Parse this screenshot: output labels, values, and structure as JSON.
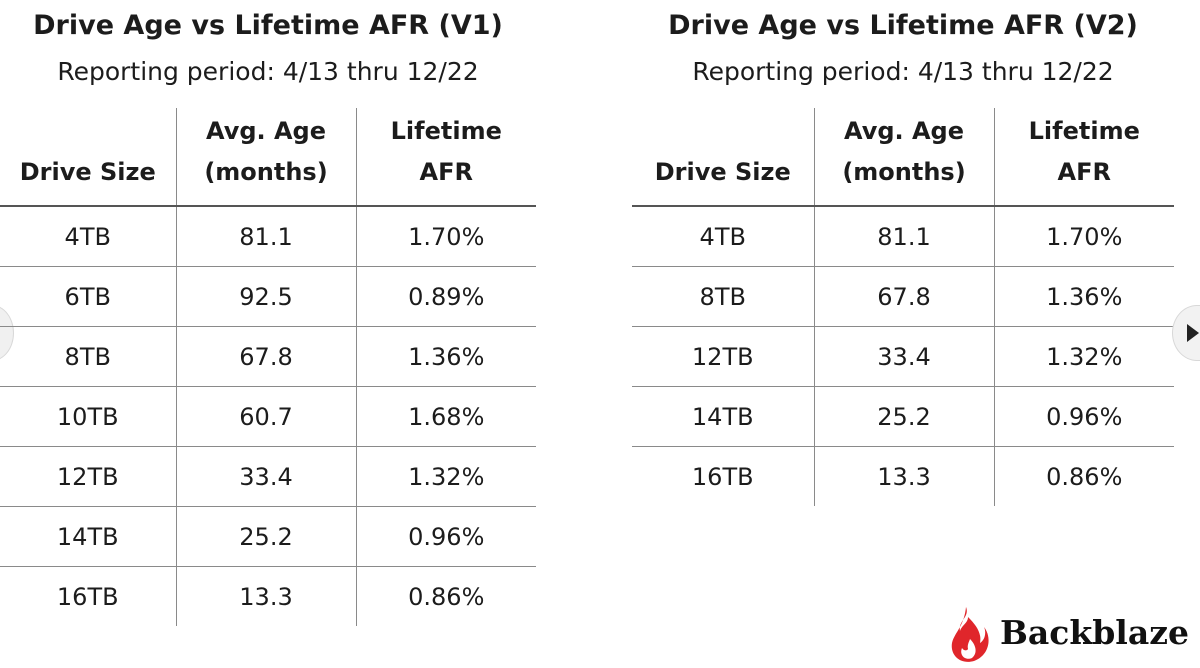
{
  "brand": {
    "logo_text": "Backblaze",
    "accent": "#e0262b"
  },
  "chart_data": [
    {
      "type": "table",
      "title": "Drive Age vs Lifetime AFR (V1)",
      "subtitle": "Reporting period: 4/13 thru 12/22",
      "columns": [
        {
          "lines": [
            "Drive Size"
          ]
        },
        {
          "lines": [
            "Avg. Age",
            "(months)"
          ]
        },
        {
          "lines": [
            "Lifetime",
            "AFR"
          ]
        }
      ],
      "rows": [
        [
          "4TB",
          "81.1",
          "1.70%"
        ],
        [
          "6TB",
          "92.5",
          "0.89%"
        ],
        [
          "8TB",
          "67.8",
          "1.36%"
        ],
        [
          "10TB",
          "60.7",
          "1.68%"
        ],
        [
          "12TB",
          "33.4",
          "1.32%"
        ],
        [
          "14TB",
          "25.2",
          "0.96%"
        ],
        [
          "16TB",
          "13.3",
          "0.86%"
        ]
      ]
    },
    {
      "type": "table",
      "title": "Drive Age vs Lifetime AFR (V2)",
      "subtitle": "Reporting period: 4/13 thru 12/22",
      "columns": [
        {
          "lines": [
            "Drive Size"
          ]
        },
        {
          "lines": [
            "Avg. Age",
            "(months)"
          ]
        },
        {
          "lines": [
            "Lifetime",
            "AFR"
          ]
        }
      ],
      "rows": [
        [
          "4TB",
          "81.1",
          "1.70%"
        ],
        [
          "8TB",
          "67.8",
          "1.36%"
        ],
        [
          "12TB",
          "33.4",
          "1.32%"
        ],
        [
          "14TB",
          "25.2",
          "0.96%"
        ],
        [
          "16TB",
          "13.3",
          "0.86%"
        ]
      ]
    }
  ]
}
